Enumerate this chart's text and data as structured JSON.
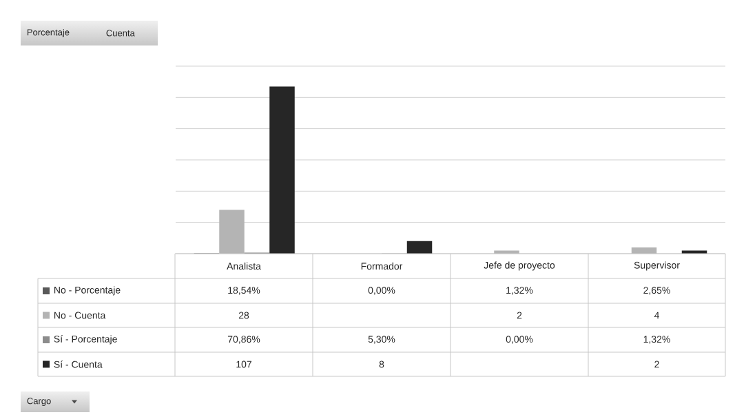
{
  "chart_data": {
    "type": "bar",
    "categories": [
      "Analista",
      "Formador",
      "Jefe de proyecto",
      "Supervisor"
    ],
    "series": [
      {
        "name": "No - Porcentaje",
        "color": "#595959",
        "values": [
          0.1854,
          0,
          0.0132,
          0.0265
        ],
        "value_labels": [
          "18,54%",
          "0,00%",
          "1,32%",
          "2,65%"
        ]
      },
      {
        "name": "No - Cuenta",
        "color": "#b4b4b4",
        "values": [
          28,
          null,
          2,
          4
        ],
        "value_labels": [
          "28",
          null,
          "2",
          "4"
        ]
      },
      {
        "name": "Sí - Porcentaje",
        "color": "#8c8c8c",
        "values": [
          0.7086,
          0.053,
          0,
          0.0132
        ],
        "value_labels": [
          "70,86%",
          "5,30%",
          "0,00%",
          "1,32%"
        ]
      },
      {
        "name": "Sí - Cuenta",
        "color": "#262626",
        "values": [
          107,
          8,
          null,
          2
        ],
        "value_labels": [
          "107",
          "8",
          null,
          "2"
        ]
      }
    ],
    "ylim": [
      0,
      120
    ],
    "yticks": [
      {
        "value": 0,
        "label": null
      },
      {
        "value": 20,
        "label": null
      },
      {
        "value": 40,
        "label": null
      },
      {
        "value": 60,
        "label": null
      },
      {
        "value": 80,
        "label": null
      },
      {
        "value": 100,
        "label": null
      },
      {
        "value": 120,
        "label": null
      }
    ],
    "grid": "y",
    "legend": "left",
    "annotations": [
      "Porcentaje",
      "Cuenta",
      "Cargo"
    ]
  }
}
